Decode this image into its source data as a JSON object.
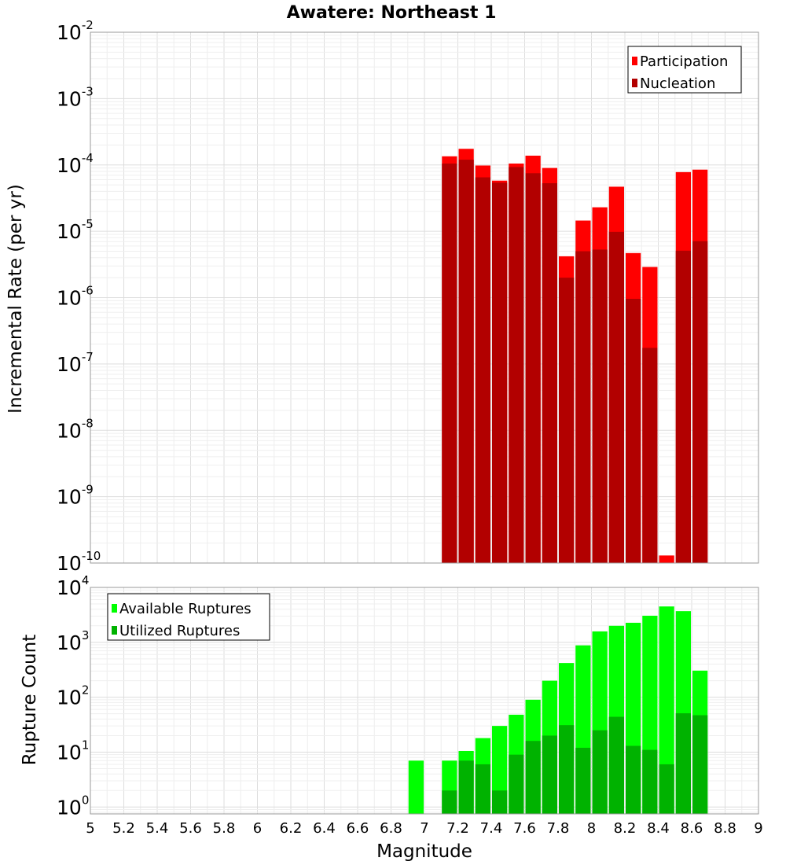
{
  "title": "Awatere: Northeast 1",
  "chart_data": [
    {
      "type": "bar",
      "title": "Awatere: Northeast 1",
      "xlabel": "Magnitude",
      "ylabel": "Incremental Rate (per yr)",
      "yscale": "log",
      "ylim": [
        1e-10,
        0.01
      ],
      "xlim": [
        5,
        9
      ],
      "bin_width": 0.1,
      "grid": true,
      "legend_position": "top-right",
      "y_ticks": [
        {
          "base": "10",
          "exp": "-10",
          "value": 1e-10
        },
        {
          "base": "10",
          "exp": "-9",
          "value": 1e-09
        },
        {
          "base": "10",
          "exp": "-8",
          "value": 1e-08
        },
        {
          "base": "10",
          "exp": "-7",
          "value": 1e-07
        },
        {
          "base": "10",
          "exp": "-6",
          "value": 1e-06
        },
        {
          "base": "10",
          "exp": "-5",
          "value": 1e-05
        },
        {
          "base": "10",
          "exp": "-4",
          "value": 0.0001
        },
        {
          "base": "10",
          "exp": "-3",
          "value": 0.001
        },
        {
          "base": "10",
          "exp": "-2",
          "value": 0.01
        }
      ],
      "x": [
        7.15,
        7.25,
        7.35,
        7.45,
        7.55,
        7.65,
        7.75,
        7.85,
        7.95,
        8.05,
        8.15,
        8.25,
        8.35,
        8.45,
        8.55,
        8.65
      ],
      "series": [
        {
          "name": "Participation",
          "color": "#ff0000",
          "values": [
            0.000135,
            0.000175,
            9.8e-05,
            5.8e-05,
            0.000105,
            0.000138,
            9e-05,
            4.2e-06,
            1.45e-05,
            2.3e-05,
            4.7e-05,
            4.7e-06,
            2.9e-06,
            1.3e-10,
            7.8e-05,
            8.5e-05
          ]
        },
        {
          "name": "Nucleation",
          "color": "#b20000",
          "values": [
            0.000105,
            0.00012,
            6.5e-05,
            5.4e-05,
            9.3e-05,
            7.5e-05,
            5.3e-05,
            2e-06,
            5e-06,
            5.3e-06,
            9.8e-06,
            9.6e-07,
            1.75e-07,
            null,
            5.1e-06,
            7.1e-06
          ]
        }
      ]
    },
    {
      "type": "bar",
      "xlabel": "Magnitude",
      "ylabel": "Rupture Count",
      "yscale": "log",
      "ylim": [
        0.75,
        10000
      ],
      "xlim": [
        5,
        9
      ],
      "bin_width": 0.1,
      "grid": true,
      "legend_position": "top-left",
      "y_ticks": [
        {
          "base": "10",
          "exp": "0",
          "value": 1
        },
        {
          "base": "10",
          "exp": "1",
          "value": 10
        },
        {
          "base": "10",
          "exp": "2",
          "value": 100
        },
        {
          "base": "10",
          "exp": "3",
          "value": 1000
        },
        {
          "base": "10",
          "exp": "4",
          "value": 10000
        }
      ],
      "x_ticks": [
        "5",
        "5.2",
        "5.4",
        "5.6",
        "5.8",
        "6",
        "6.2",
        "6.4",
        "6.6",
        "6.8",
        "7",
        "7.2",
        "7.4",
        "7.6",
        "7.8",
        "8",
        "8.2",
        "8.4",
        "8.6",
        "8.8",
        "9"
      ],
      "x": [
        6.95,
        7.15,
        7.25,
        7.35,
        7.45,
        7.55,
        7.65,
        7.75,
        7.85,
        7.95,
        8.05,
        8.15,
        8.25,
        8.35,
        8.45,
        8.55,
        8.65
      ],
      "series": [
        {
          "name": "Available Ruptures",
          "color": "#00ff00",
          "values": [
            7,
            7,
            10.5,
            18,
            30,
            48,
            90,
            200,
            420,
            880,
            1580,
            2000,
            2270,
            3050,
            4500,
            3700,
            305
          ]
        },
        {
          "name": "Utilized Ruptures",
          "color": "#00b200",
          "values": [
            null,
            2,
            7,
            6,
            2,
            9,
            16,
            20,
            31,
            12,
            25,
            44,
            13,
            11,
            6,
            51,
            47
          ]
        }
      ]
    }
  ]
}
